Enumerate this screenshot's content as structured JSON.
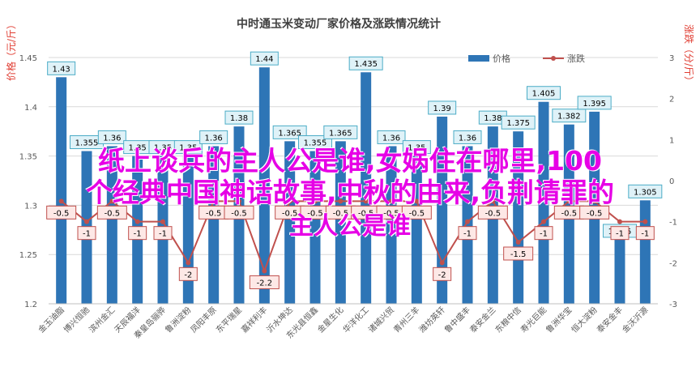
{
  "chart_data": {
    "type": "bar+line",
    "title": "中时通玉米变动厂家价格及涨跌情况统计",
    "y_left_label": "价格（元/斤）",
    "y_right_label": "涨跌（分/斤）",
    "y_left_range": [
      1.2,
      1.45
    ],
    "y_left_ticks": [
      "1.2",
      "1.25",
      "1.3",
      "1.35",
      "1.4",
      "1.45"
    ],
    "y_right_range": [
      -3,
      3
    ],
    "y_right_ticks": [
      "-3",
      "-2",
      "-1",
      "0",
      "1",
      "2",
      "3"
    ],
    "legend": [
      "价格",
      "涨跌"
    ],
    "legend_position": "top-right",
    "categories": [
      "金玉油脂",
      "博兴恒驰",
      "滨州金汇",
      "天辰福洋",
      "秦皇岛骊骅",
      "鲁洲淀粉",
      "凤阳丰原",
      "东平瑞星",
      "嘉祥利丰",
      "沂水坤达",
      "东光县恒鑫",
      "金星生化",
      "华洋化工",
      "诸城兴贸",
      "青州三羊",
      "潍坊英轩",
      "鲁中盛丰",
      "泰安金兰",
      "东粮中信",
      "寿光巨能",
      "鲁洲华宝",
      "恒大淀粉",
      "泰安金丰",
      "金沃沂源"
    ],
    "price": [
      1.43,
      1.355,
      1.36,
      1.35,
      1.35,
      1.35,
      1.36,
      1.38,
      1.44,
      1.365,
      1.355,
      1.365,
      1.435,
      1.36,
      1.35,
      1.39,
      1.36,
      1.38,
      1.375,
      1.405,
      1.382,
      1.395,
      1.265,
      1.305
    ],
    "price_labels": [
      "1.43",
      "1.355",
      "1.36",
      "1.35",
      "1.35",
      "1.35",
      "1.36",
      "1.38",
      "1.44",
      "1.365",
      "1.355",
      "1.365",
      "1.435",
      "1.36",
      "1.35",
      "1.39",
      "1.36",
      "1.38",
      "1.375",
      "1.405",
      "1.382",
      "1.395",
      "1.265",
      "1.305"
    ],
    "change": [
      -0.5,
      -1,
      -0.5,
      -1,
      -1,
      -2,
      -0.5,
      -0.5,
      -2.2,
      -0.5,
      -0.5,
      -0.5,
      -0.5,
      -0.5,
      -0.5,
      -2,
      -1,
      -0.5,
      -1.5,
      -1,
      -0.5,
      -0.5,
      -1,
      -1
    ],
    "change_labels": [
      "-0.5",
      "-1",
      "-0.5",
      "-1",
      "-1",
      "-2",
      "-0.5",
      "-0.5",
      "-2.2",
      "-0.5",
      "-0.5",
      "-0.5",
      "-0.5",
      "-0.5",
      "-0.5",
      "-2",
      "-1",
      "-0.5",
      "-1.5",
      "-1",
      "-0.5",
      "-0.5",
      "-1",
      "-1"
    ],
    "colors": {
      "bar": "#2e75b6",
      "line": "#c0504d",
      "bar_label_bg": "#dff2f8",
      "bar_label_border": "#4bacc6",
      "line_label_bg": "#fde8e6",
      "line_label_border": "#c0504d",
      "title": "#404040",
      "axis_text": "#595959",
      "grid": "#d9d9d9"
    }
  },
  "overlay": {
    "line1": "纸上谈兵的主人公是谁,女娲住在哪里,100",
    "line2": "个经典中国神话故事,中秋的由来,负荆请罪的",
    "line3": "主人公是谁"
  }
}
